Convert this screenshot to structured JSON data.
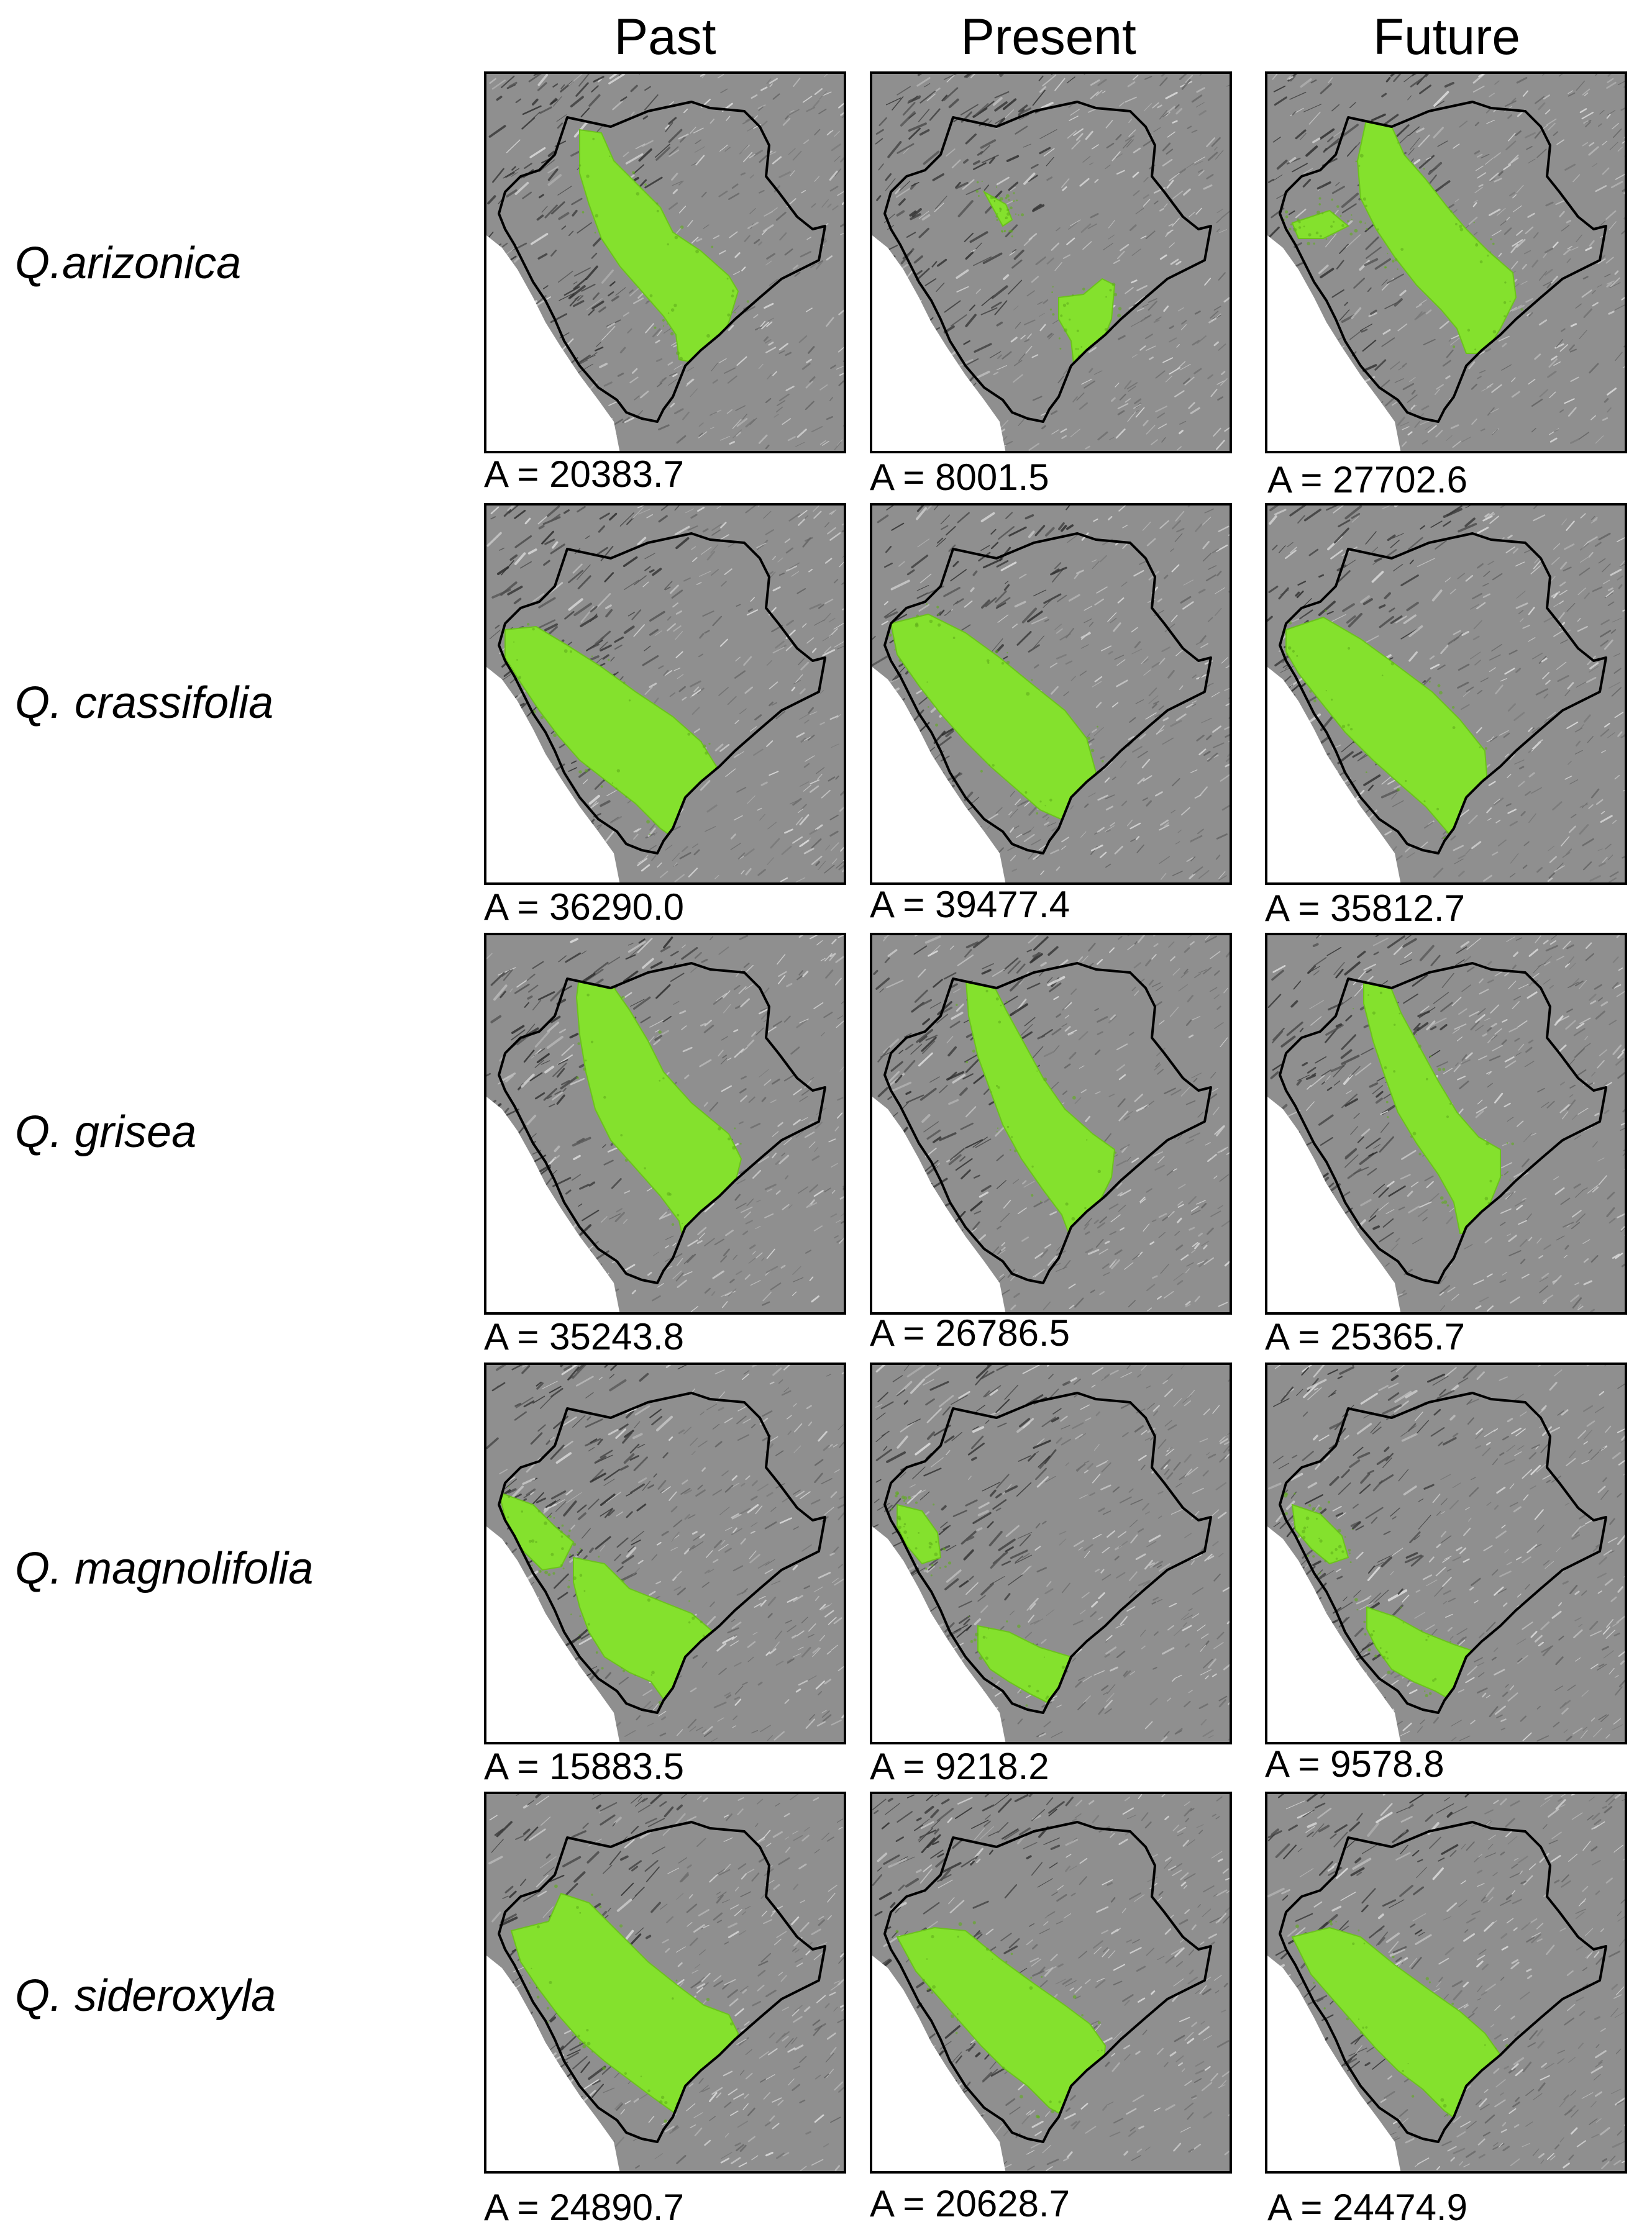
{
  "columns": [
    "Past",
    "Present",
    "Future"
  ],
  "colors": {
    "suitable_habitat": "#84e12d",
    "boundary": "#000000",
    "ocean": "#ffffff",
    "relief_base": "#8f8f8f"
  },
  "rows": [
    {
      "species": "Q.arizonica",
      "areas": [
        "A = 20383.7",
        "A = 8001.5",
        "A = 27702.6"
      ]
    },
    {
      "species": "Q. crassifolia",
      "areas": [
        "A = 36290.0",
        "A = 39477.4",
        "A = 35812.7"
      ]
    },
    {
      "species": "Q. grisea",
      "areas": [
        "A = 35243.8",
        "A = 26786.5",
        "A = 25365.7"
      ]
    },
    {
      "species": "Q. magnolifolia",
      "areas": [
        "A = 15883.5",
        "A = 9218.2",
        "A = 9578.8"
      ]
    },
    {
      "species": "Q. sideroxyla",
      "areas": [
        "A = 24890.7",
        "A = 20628.7",
        "A = 24474.9"
      ]
    }
  ]
}
